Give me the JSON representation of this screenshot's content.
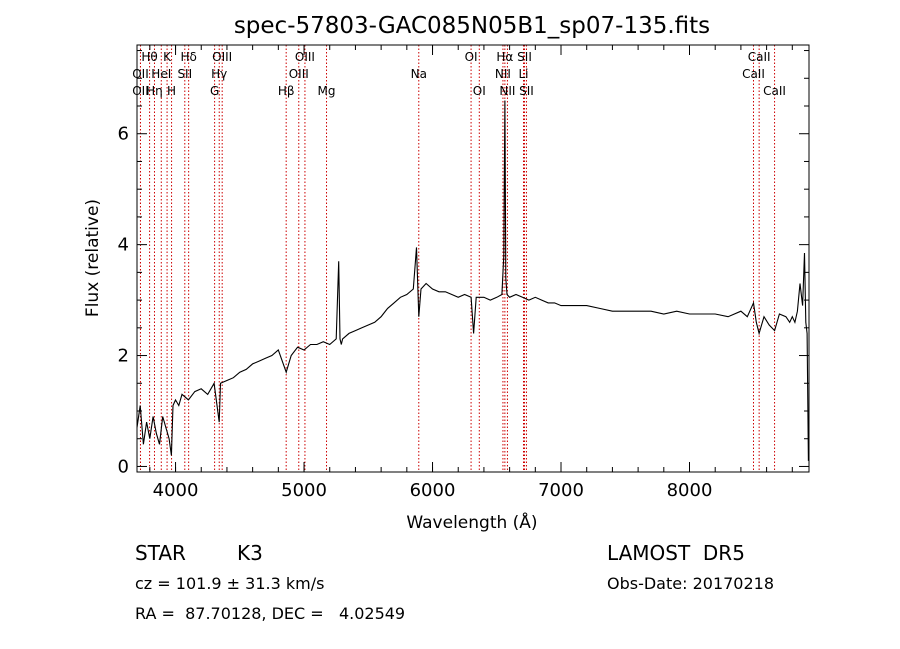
{
  "chart_data": {
    "type": "line",
    "title": "spec-57803-GAC085N05B1_sp07-135.fits",
    "xlabel": "Wavelength (Å)",
    "ylabel": "Flux (relative)",
    "xlim": [
      3700,
      8930
    ],
    "ylim": [
      -0.1,
      7.6
    ],
    "x_ticks": [
      4000,
      5000,
      6000,
      7000,
      8000
    ],
    "y_ticks": [
      0,
      2,
      4,
      6
    ],
    "x_tick_labels": [
      "4000",
      "5000",
      "6000",
      "7000",
      "8000"
    ],
    "y_tick_labels": [
      "0",
      "2",
      "4",
      "6"
    ],
    "grid": false,
    "line_color": "#000000",
    "marker_color": "#cc0000",
    "series": [
      {
        "x": [
          3700,
          3725,
          3750,
          3775,
          3800,
          3825,
          3850,
          3875,
          3900,
          3925,
          3950,
          3968,
          3980,
          4000,
          4025,
          4050,
          4075,
          4100,
          4150,
          4200,
          4250,
          4300,
          4340,
          4350,
          4400,
          4450,
          4500,
          4550,
          4600,
          4650,
          4700,
          4750,
          4800,
          4861,
          4900,
          4950,
          5000,
          5050,
          5100,
          5150,
          5200,
          5250,
          5270,
          5280,
          5290,
          5300,
          5350,
          5400,
          5450,
          5500,
          5550,
          5600,
          5650,
          5700,
          5750,
          5800,
          5850,
          5875,
          5893,
          5910,
          5950,
          6000,
          6050,
          6100,
          6150,
          6200,
          6250,
          6300,
          6320,
          6340,
          6400,
          6450,
          6500,
          6540,
          6555,
          6563,
          6570,
          6580,
          6600,
          6650,
          6700,
          6750,
          6800,
          6850,
          6900,
          6950,
          7000,
          7100,
          7200,
          7300,
          7400,
          7500,
          7600,
          7700,
          7800,
          7900,
          8000,
          8100,
          8200,
          8300,
          8400,
          8450,
          8498,
          8520,
          8542,
          8580,
          8620,
          8662,
          8700,
          8750,
          8780,
          8800,
          8820,
          8840,
          8860,
          8880,
          8895,
          8905,
          8915,
          8925
        ],
        "y": [
          0.7,
          1.1,
          0.4,
          0.8,
          0.5,
          0.9,
          0.6,
          0.4,
          0.9,
          0.7,
          0.5,
          0.2,
          1.1,
          1.2,
          1.1,
          1.3,
          1.25,
          1.2,
          1.35,
          1.4,
          1.3,
          1.5,
          0.8,
          1.5,
          1.55,
          1.6,
          1.7,
          1.75,
          1.85,
          1.9,
          1.95,
          2.0,
          2.1,
          1.7,
          2.0,
          2.15,
          2.1,
          2.2,
          2.2,
          2.25,
          2.2,
          2.3,
          3.7,
          2.3,
          2.2,
          2.3,
          2.4,
          2.45,
          2.5,
          2.55,
          2.6,
          2.7,
          2.85,
          2.95,
          3.05,
          3.1,
          3.2,
          3.95,
          2.7,
          3.2,
          3.3,
          3.2,
          3.15,
          3.15,
          3.1,
          3.05,
          3.1,
          3.05,
          2.4,
          3.05,
          3.05,
          3.0,
          3.05,
          3.1,
          3.8,
          6.6,
          3.4,
          3.1,
          3.05,
          3.1,
          3.05,
          3.0,
          3.05,
          3.0,
          2.95,
          2.95,
          2.9,
          2.9,
          2.9,
          2.85,
          2.8,
          2.8,
          2.8,
          2.8,
          2.75,
          2.8,
          2.75,
          2.75,
          2.75,
          2.7,
          2.8,
          2.7,
          2.95,
          2.6,
          2.4,
          2.7,
          2.55,
          2.45,
          2.75,
          2.7,
          2.6,
          2.7,
          2.6,
          2.8,
          3.3,
          2.9,
          3.85,
          2.6,
          2.4,
          0.1
        ]
      }
    ],
    "lines": [
      {
        "label": "Hθ",
        "w": 3798,
        "row": 0
      },
      {
        "label": "OII",
        "w": 3727,
        "row": 1
      },
      {
        "label": "OII",
        "w": 3727,
        "row": 2
      },
      {
        "label": "Hη",
        "w": 3836,
        "row": 2
      },
      {
        "label": "K",
        "w": 3934,
        "row": 0
      },
      {
        "label": "HeI",
        "w": 3889,
        "row": 1
      },
      {
        "label": "H",
        "w": 3969,
        "row": 2
      },
      {
        "label": "Hδ",
        "w": 4102,
        "row": 0
      },
      {
        "label": "SII",
        "w": 4072,
        "row": 1
      },
      {
        "label": "OIII",
        "w": 4363,
        "row": 0
      },
      {
        "label": "Hγ",
        "w": 4340,
        "row": 1
      },
      {
        "label": "G",
        "w": 4304,
        "row": 2
      },
      {
        "label": "Hβ",
        "w": 4861,
        "row": 2
      },
      {
        "label": "OIII",
        "w": 5007,
        "row": 0
      },
      {
        "label": "OIII",
        "w": 4959,
        "row": 1
      },
      {
        "label": "Mg",
        "w": 5175,
        "row": 2
      },
      {
        "label": "Na",
        "w": 5893,
        "row": 1
      },
      {
        "label": "OI",
        "w": 6300,
        "row": 0
      },
      {
        "label": "OI",
        "w": 6364,
        "row": 2
      },
      {
        "label": "Hα",
        "w": 6563,
        "row": 0
      },
      {
        "label": "NII",
        "w": 6548,
        "row": 1
      },
      {
        "label": "NII",
        "w": 6583,
        "row": 2
      },
      {
        "label": "SII",
        "w": 6716,
        "row": 0
      },
      {
        "label": "Li",
        "w": 6708,
        "row": 1
      },
      {
        "label": "SII",
        "w": 6731,
        "row": 2
      },
      {
        "label": "CaII",
        "w": 8542,
        "row": 0
      },
      {
        "label": "CaII",
        "w": 8498,
        "row": 1
      },
      {
        "label": "CaII",
        "w": 8662,
        "row": 2
      }
    ]
  },
  "info": {
    "object_class": "STAR",
    "subclass": "K3",
    "survey": "LAMOST  DR5",
    "redshift": "cz = 101.9 ± 31.3 km/s",
    "obs_date": "Obs-Date: 20170218",
    "coords": "RA =  87.70128, DEC =   4.02549"
  }
}
